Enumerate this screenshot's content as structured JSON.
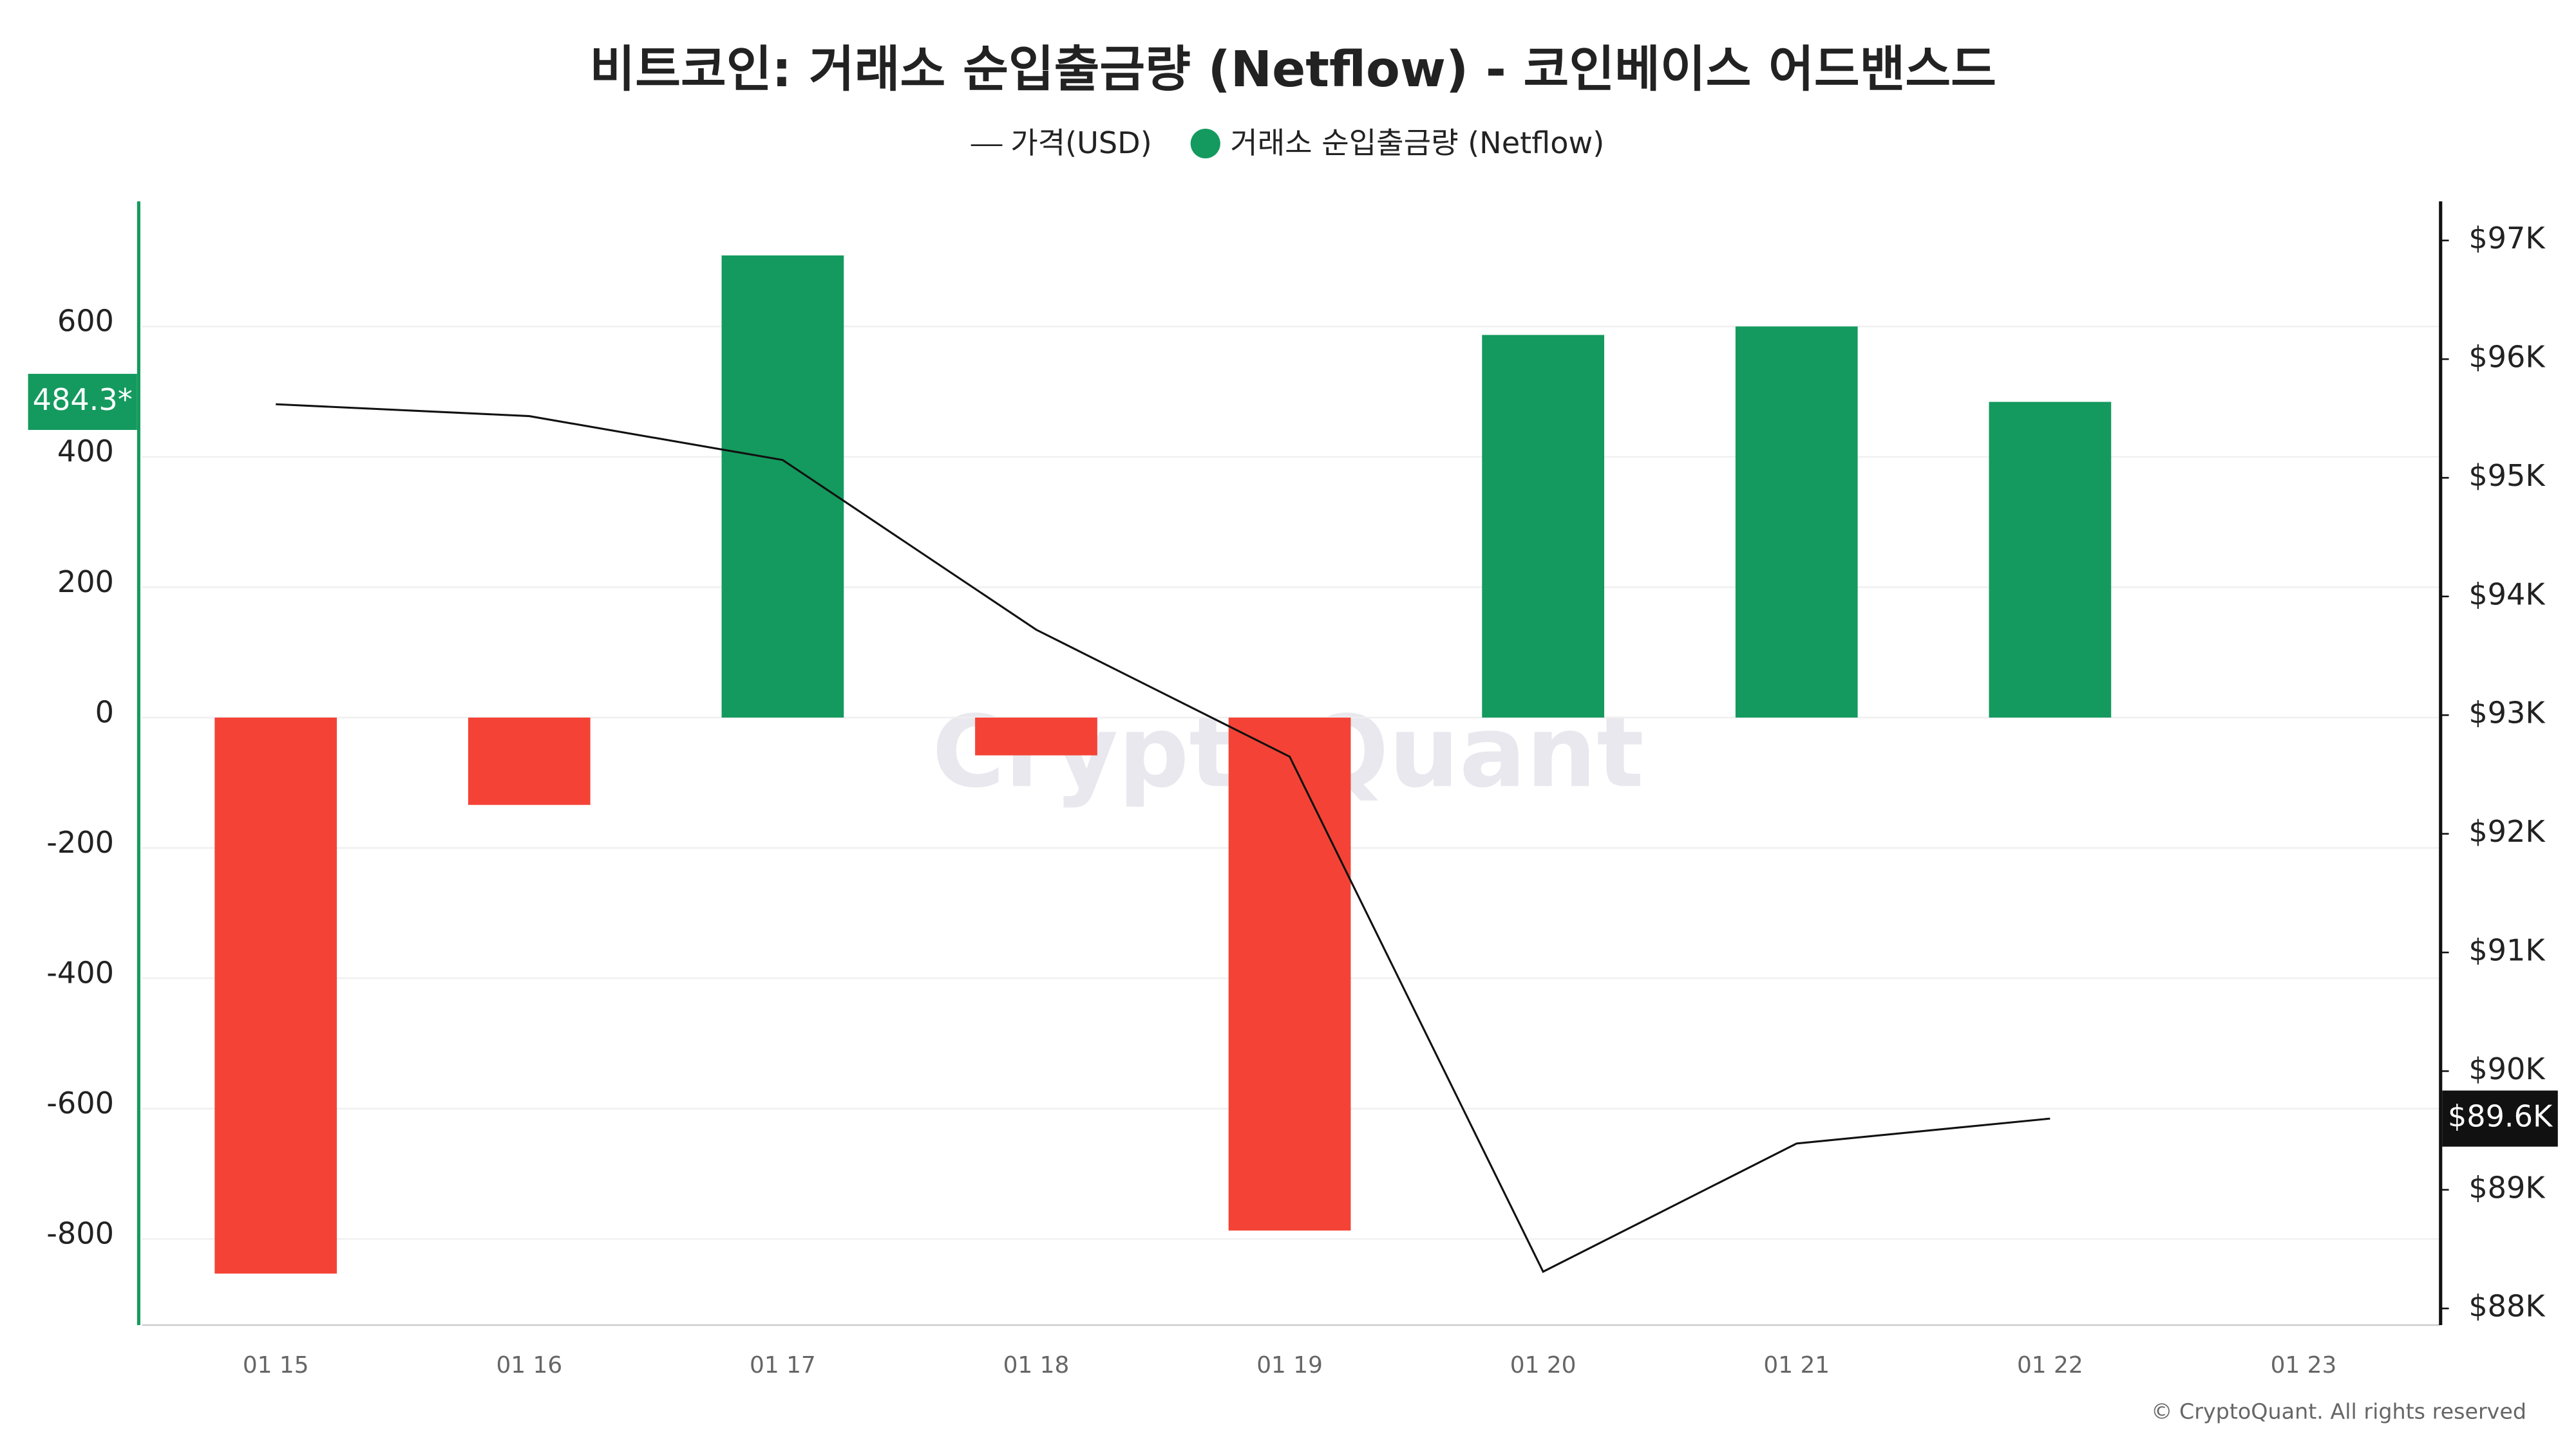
{
  "chart_data": {
    "type": "bar",
    "title": "비트코인: 거래소 순입출금량 (Netflow) - 코인베이스 어드밴스드",
    "categories": [
      "01 15",
      "01 16",
      "01 17",
      "01 18",
      "01 19",
      "01 20",
      "01 21",
      "01 22",
      "01 23"
    ],
    "series": [
      {
        "name": "가격(USD)",
        "type": "line",
        "axis": "y2",
        "color": "#111111",
        "values": [
          95620,
          95520,
          95150,
          93720,
          92650,
          88310,
          89390,
          89600,
          null
        ],
        "value_labels": [
          null,
          null,
          null,
          null,
          null,
          null,
          null,
          "$89.6K",
          null
        ]
      },
      {
        "name": "거래소 순입출금량 (Netflow)",
        "type": "bar",
        "color": "#149a5e",
        "negative_color": "#f44336",
        "values": [
          -853,
          -134,
          709,
          -58,
          -787,
          587,
          600,
          484.3,
          null
        ],
        "value_labels": [
          null,
          null,
          null,
          null,
          null,
          null,
          null,
          "484.3*",
          null
        ]
      }
    ],
    "ylim": [
      -932,
      792
    ],
    "yticks": [
      -800,
      -600,
      -400,
      -200,
      0,
      200,
      400,
      600
    ],
    "y2lim": [
      87860,
      97330
    ],
    "y2ticks": [
      {
        "value": 88000,
        "label": "$88K"
      },
      {
        "value": 89000,
        "label": "$89K"
      },
      {
        "value": 90000,
        "label": "$90K"
      },
      {
        "value": 91000,
        "label": "$91K"
      },
      {
        "value": 92000,
        "label": "$92K"
      },
      {
        "value": 93000,
        "label": "$93K"
      },
      {
        "value": 94000,
        "label": "$94K"
      },
      {
        "value": 95000,
        "label": "$95K"
      },
      {
        "value": 96000,
        "label": "$96K"
      },
      {
        "value": 97000,
        "label": "$97K"
      }
    ],
    "grid": true,
    "legend": "top",
    "watermark": "CryptoQuant",
    "copyright": "© CryptoQuant. All rights reserved"
  }
}
